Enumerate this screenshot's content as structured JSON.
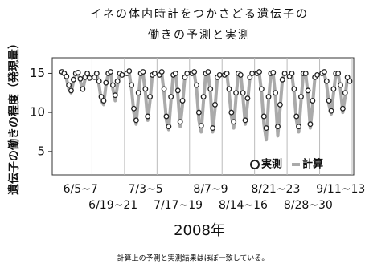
{
  "chart_data": {
    "type": "line",
    "title_lines": [
      "イネの体内時計をつかさどる遺伝子の",
      "働きの予測と実測"
    ],
    "y_label": "遺伝子の働きの程度（発現量）",
    "x_label": "2008年",
    "categories": [
      "6/5~7",
      "6/19~21",
      "7/3~5",
      "7/17~19",
      "8/7~9",
      "8/14~16",
      "8/21~23",
      "8/28~30",
      "9/11~13"
    ],
    "ylim": [
      2,
      17
    ],
    "yticks": [
      5,
      10,
      15
    ],
    "grid": false,
    "legend": "bottom-right",
    "series": [
      {
        "name": "実測",
        "style": "marker",
        "color": "#222222",
        "values": [
          [
            15.2,
            15,
            14.6,
            13.5,
            12.8,
            14.2,
            15,
            15.1,
            14.3,
            13,
            14.5,
            15,
            14.4
          ],
          [
            14.5,
            15,
            14,
            12,
            11.5,
            13.8,
            15,
            15.2,
            13.5,
            12.2,
            14,
            15,
            14.8
          ],
          [
            15,
            15.3,
            13.5,
            10.5,
            9,
            12.5,
            15,
            15.2,
            13,
            9.5,
            12,
            14.8,
            15
          ],
          [
            14.8,
            15.2,
            13,
            9.5,
            8.2,
            12,
            14.8,
            15,
            12.8,
            8.8,
            11.5,
            14.5,
            15
          ],
          [
            15,
            15.2,
            13.5,
            10,
            8.3,
            12,
            15,
            15.2,
            13,
            8,
            11,
            14.5,
            14.8
          ],
          [
            14.8,
            15,
            13,
            10,
            8.8,
            12.5,
            15,
            14.8,
            12.5,
            9,
            11.8,
            14.5,
            15
          ],
          [
            15,
            15.2,
            13,
            9.5,
            8,
            12,
            15,
            15.1,
            12.5,
            8.2,
            11,
            14.2,
            15
          ],
          [
            14.6,
            15,
            13,
            9.5,
            8.2,
            12,
            15,
            15,
            12.8,
            8.5,
            11.5,
            14.5,
            14.8
          ],
          [
            15,
            15.2,
            14,
            11.5,
            10.2,
            13,
            15,
            15,
            13.5,
            10.5,
            12.5,
            14.5,
            14
          ]
        ]
      },
      {
        "name": "計算",
        "style": "line",
        "color": "#aaaaaa",
        "values": [
          [
            15,
            15,
            14.3,
            13,
            12.5,
            14,
            15,
            15,
            14,
            12.8,
            14.2,
            15,
            14.5
          ],
          [
            14.8,
            15,
            13.5,
            11.5,
            11,
            13.5,
            15,
            15,
            13,
            11.5,
            13.5,
            15,
            14.8
          ],
          [
            15,
            15,
            13,
            10,
            8.5,
            12,
            15,
            15,
            12.5,
            9,
            11.5,
            14.8,
            15
          ],
          [
            15,
            15,
            12.5,
            9,
            7.8,
            11.5,
            14.8,
            15,
            12.2,
            8.2,
            11,
            14.5,
            15
          ],
          [
            15,
            15,
            13,
            9,
            7.5,
            11.5,
            15,
            15,
            12.5,
            7.5,
            10.5,
            14.5,
            15
          ],
          [
            15,
            15,
            12.5,
            9.5,
            8,
            12,
            15,
            15,
            12,
            8.5,
            11.2,
            14.5,
            15
          ],
          [
            15,
            15,
            12.5,
            8.5,
            6.5,
            11.5,
            15,
            15,
            12,
            7,
            10.5,
            14.2,
            15
          ],
          [
            14.8,
            15,
            12.5,
            9,
            7.5,
            11.5,
            15,
            15,
            12.2,
            8,
            11,
            14.5,
            14.8
          ],
          [
            15,
            15,
            13.5,
            11,
            9.8,
            12.5,
            15,
            15,
            13,
            10,
            12,
            14.5,
            14.2
          ]
        ]
      }
    ]
  },
  "caption": "計算上の予測と実測結果はほぼ一致している。"
}
